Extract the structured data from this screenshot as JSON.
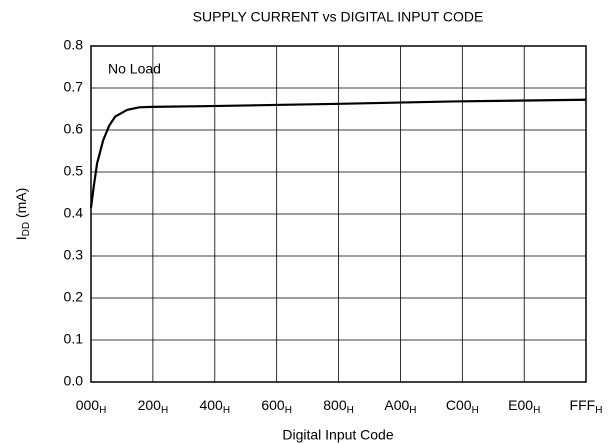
{
  "chart_data": {
    "type": "line",
    "title": "SUPPLY CURRENT vs DIGITAL INPUT CODE",
    "xlabel": "Digital Input Code",
    "ylabel": [
      "I",
      "DD",
      " (mA)"
    ],
    "annotation": "No Load",
    "x": [
      0,
      25,
      50,
      100,
      150,
      200,
      300,
      400,
      500,
      1000,
      2000,
      3000,
      4095
    ],
    "values": [
      0.415,
      0.47,
      0.52,
      0.575,
      0.61,
      0.632,
      0.648,
      0.654,
      0.655,
      0.657,
      0.662,
      0.668,
      0.672
    ],
    "color": "#000000",
    "xlim": [
      0,
      4095
    ],
    "xticks": [
      {
        "value": 0,
        "label": "000",
        "subscript": "H"
      },
      {
        "value": 512,
        "label": "200",
        "subscript": "H"
      },
      {
        "value": 1024,
        "label": "400",
        "subscript": "H"
      },
      {
        "value": 1536,
        "label": "600",
        "subscript": "H"
      },
      {
        "value": 2048,
        "label": "800",
        "subscript": "H"
      },
      {
        "value": 2560,
        "label": "A00",
        "subscript": "H"
      },
      {
        "value": 3072,
        "label": "C00",
        "subscript": "H"
      },
      {
        "value": 3584,
        "label": "E00",
        "subscript": "H"
      },
      {
        "value": 4095,
        "label": "FFF",
        "subscript": "H"
      }
    ],
    "ylim": [
      0,
      0.8
    ],
    "yticks": [
      {
        "value": 0,
        "label": "0.0"
      },
      0.1,
      0.2,
      0.3,
      0.4,
      0.5,
      0.6,
      0.7,
      0.8
    ],
    "grid": true
  }
}
